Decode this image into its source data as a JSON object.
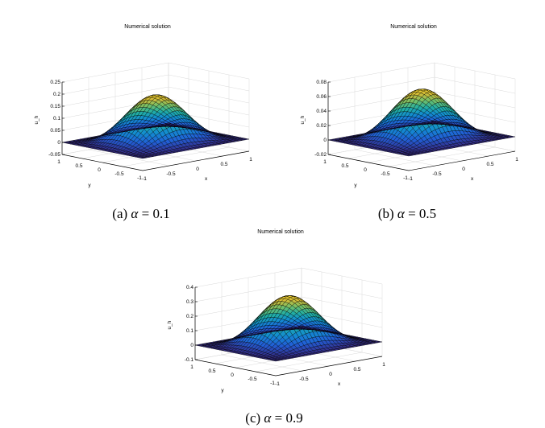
{
  "figure": {
    "panels": [
      {
        "caption_prefix": "(a) ",
        "caption_symbol": "α",
        "caption_suffix": " = 0.1"
      },
      {
        "caption_prefix": "(b) ",
        "caption_symbol": "α",
        "caption_suffix": " = 0.5"
      },
      {
        "caption_prefix": "(c) ",
        "caption_symbol": "α",
        "caption_suffix": " = 0.9"
      }
    ]
  },
  "chart_data": [
    {
      "type": "surface3d",
      "title": "Numerical solution",
      "xlabel": "x",
      "ylabel": "y",
      "zlabel": "u_h",
      "xlim": [
        -1,
        1
      ],
      "ylim": [
        -1,
        1
      ],
      "zlim": [
        -0.05,
        0.25
      ],
      "x_ticks": [
        "-1",
        "-0.5",
        "0",
        "0.5",
        "1"
      ],
      "y_ticks": [
        "1",
        "0.5",
        "0",
        "-0.5",
        "-1"
      ],
      "z_ticks": [
        "-0.05",
        "0",
        "0.05",
        "0.1",
        "0.15",
        "0.2",
        "0.25"
      ],
      "z_tick_values": [
        -0.05,
        0,
        0.05,
        0.1,
        0.15,
        0.2,
        0.25
      ],
      "peak": 0.19,
      "colormap": "parula",
      "grid": true
    },
    {
      "type": "surface3d",
      "title": "Numerical solution",
      "xlabel": "x",
      "ylabel": "y",
      "zlabel": "u_h",
      "xlim": [
        -1,
        1
      ],
      "ylim": [
        -1,
        1
      ],
      "zlim": [
        -0.02,
        0.08
      ],
      "x_ticks": [
        "-1",
        "-0.5",
        "0",
        "0.5",
        "1"
      ],
      "y_ticks": [
        "1",
        "0.5",
        "0",
        "-0.5",
        "-1"
      ],
      "z_ticks": [
        "-0.02",
        "0",
        "0.02",
        "0.04",
        "0.06",
        "0.08"
      ],
      "z_tick_values": [
        -0.02,
        0,
        0.02,
        0.04,
        0.06,
        0.08
      ],
      "peak": 0.068,
      "colormap": "parula",
      "grid": true
    },
    {
      "type": "surface3d",
      "title": "Numerical solution",
      "xlabel": "x",
      "ylabel": "y",
      "zlabel": "u_h",
      "xlim": [
        -1,
        1
      ],
      "ylim": [
        -1,
        1
      ],
      "zlim": [
        -0.1,
        0.4
      ],
      "x_ticks": [
        "-1",
        "-0.5",
        "0",
        "0.5",
        "1"
      ],
      "y_ticks": [
        "1",
        "0.5",
        "0",
        "-0.5",
        "-1"
      ],
      "z_ticks": [
        "-0.1",
        "0",
        "0.1",
        "0.2",
        "0.3",
        "0.4"
      ],
      "z_tick_values": [
        -0.1,
        0,
        0.1,
        0.2,
        0.3,
        0.4
      ],
      "peak": 0.33,
      "colormap": "parula",
      "grid": true
    }
  ]
}
